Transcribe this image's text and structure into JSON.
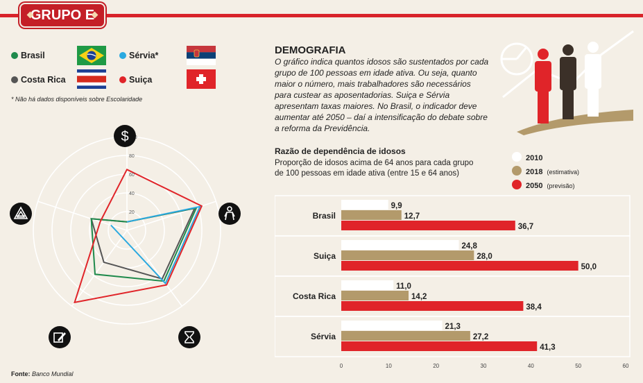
{
  "header": {
    "group_title": "GRUPO E"
  },
  "teams": [
    {
      "name": "Brasil",
      "color": "#1f8a4c"
    },
    {
      "name": "Costa Rica",
      "color": "#555555"
    },
    {
      "name": "Sérvia*",
      "color": "#2aa9e0"
    },
    {
      "name": "Suiça",
      "color": "#e02429"
    }
  ],
  "note": "* Não há dados disponíveis sobre Escolaridade",
  "demografia": {
    "title": "DEMOGRAFIA",
    "description": "O gráfico indica quantos idosos são sustentados por cada grupo de 100 pessoas em idade ativa. Ou seja, quanto maior o número, mais trabalhadores são necessários para custear as aposentadorias. Suiça e Sérvia apresentam taxas maiores. No Brasil, o indicador deve aumentar até 2050 – daí a intensificação do debate sobre a reforma da Previdência."
  },
  "source": {
    "label": "Fonte:",
    "value": "Banco Mundial"
  },
  "chart_data": [
    {
      "type": "radar",
      "axis_icons": [
        "dollar-icon",
        "person-icon",
        "hourglass-icon",
        "pencil-icon",
        "triangle-icon"
      ],
      "rlim": [
        0,
        100
      ],
      "ticks": [
        "20",
        "40",
        "60",
        "80",
        "100"
      ],
      "series": [
        {
          "name": "Brasil",
          "color": "#1f8a4c",
          "values": [
            9,
            78,
            67,
            58,
            40
          ]
        },
        {
          "name": "Costa Rica",
          "color": "#555555",
          "values": [
            9,
            76,
            64,
            42,
            40
          ]
        },
        {
          "name": "Sérvia",
          "color": "#2aa9e0",
          "values": [
            9,
            82,
            70,
            null,
            18
          ]
        },
        {
          "name": "Suiça",
          "color": "#e02429",
          "values": [
            65,
            84,
            72,
            95,
            30
          ]
        }
      ]
    },
    {
      "type": "bar",
      "orientation": "horizontal",
      "title": "Razão de dependência de idosos",
      "subtitle": "Proporção de idosos acima de 64 anos para cada grupo de 100 pessoas em idade ativa (entre 15 e 64 anos)",
      "categories": [
        "Brasil",
        "Suiça",
        "Costa Rica",
        "Sérvia"
      ],
      "series": [
        {
          "name": "2010",
          "note": "",
          "color": "#ffffff",
          "values": [
            9.9,
            24.8,
            11.0,
            21.3
          ],
          "labels": [
            "9,9",
            "24,8",
            "11,0",
            "21,3"
          ]
        },
        {
          "name": "2018",
          "note": "(estimativa)",
          "color": "#b39a6b",
          "values": [
            12.7,
            28.0,
            14.2,
            27.2
          ],
          "labels": [
            "12,7",
            "28,0",
            "14,2",
            "27,2"
          ]
        },
        {
          "name": "2050",
          "note": "(previsão)",
          "color": "#e02429",
          "values": [
            36.7,
            50.0,
            38.4,
            41.3
          ],
          "labels": [
            "36,7",
            "50,0",
            "38,4",
            "41,3"
          ]
        }
      ],
      "xlim": [
        0,
        60
      ],
      "xticks": [
        "0",
        "10",
        "20",
        "30",
        "40",
        "50",
        "60"
      ]
    }
  ]
}
